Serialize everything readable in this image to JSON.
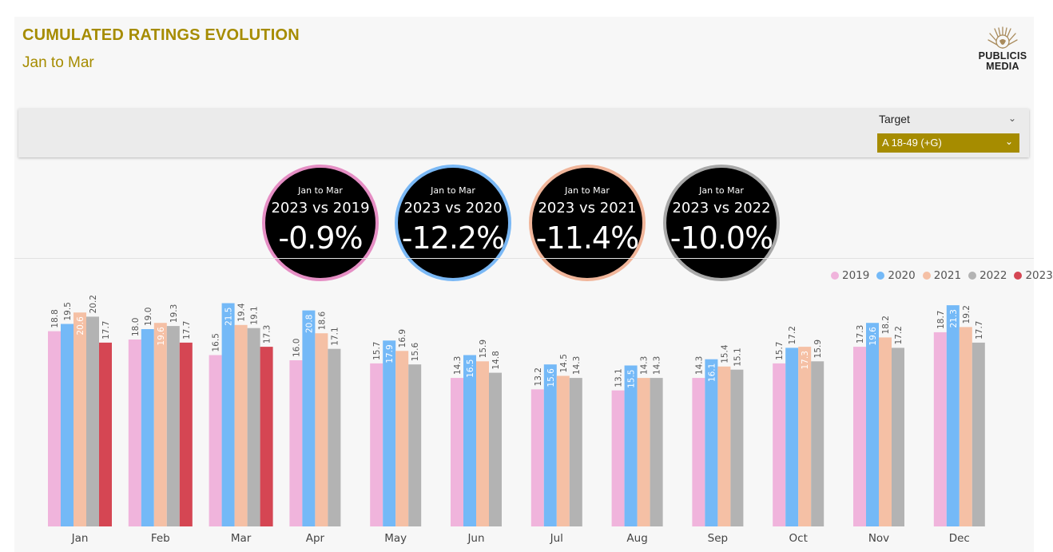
{
  "header": {
    "title": "CUMULATED RATINGS EVOLUTION",
    "subtitle": "Jan to Mar"
  },
  "logo": {
    "line1": "PUBLICIS",
    "line2": "MEDIA"
  },
  "slicer": {
    "label": "Target",
    "selected": "A 18-49 (+G)"
  },
  "kpis": [
    {
      "period": "Jan to Mar",
      "compare": "2023 vs 2019",
      "value": "-0.9%",
      "border": "#e58ec4"
    },
    {
      "period": "Jan to Mar",
      "compare": "2023 vs 2020",
      "value": "-12.2%",
      "border": "#7ab8f5"
    },
    {
      "period": "Jan to Mar",
      "compare": "2023 vs 2021",
      "value": "-11.4%",
      "border": "#f0b59a"
    },
    {
      "period": "Jan to Mar",
      "compare": "2023 vs 2022",
      "value": "-10.0%",
      "border": "#a8a8a8"
    }
  ],
  "chart_data": {
    "type": "bar",
    "categories": [
      "Jan",
      "Feb",
      "Mar",
      "Apr",
      "May",
      "Jun",
      "Jul",
      "Aug",
      "Sep",
      "Oct",
      "Nov",
      "Dec"
    ],
    "legend_position": "top-right",
    "grid": false,
    "ylim": [
      0,
      25
    ],
    "series": [
      {
        "name": "2019",
        "color": "#f0b4dc",
        "values": [
          18.8,
          18.0,
          16.5,
          16.0,
          15.7,
          14.3,
          13.2,
          13.1,
          14.3,
          15.7,
          17.3,
          18.7
        ]
      },
      {
        "name": "2020",
        "color": "#74b9f7",
        "values": [
          19.5,
          19.0,
          21.5,
          20.8,
          17.9,
          16.5,
          15.6,
          15.5,
          16.1,
          17.2,
          19.6,
          21.3
        ]
      },
      {
        "name": "2021",
        "color": "#f5c0a5",
        "values": [
          20.6,
          19.6,
          19.4,
          18.6,
          16.9,
          15.9,
          14.5,
          14.3,
          15.4,
          17.3,
          18.2,
          19.2
        ]
      },
      {
        "name": "2022",
        "color": "#b3b3b3",
        "values": [
          20.2,
          19.3,
          19.1,
          17.1,
          15.6,
          14.8,
          14.3,
          14.3,
          15.1,
          15.9,
          17.2,
          17.7
        ]
      },
      {
        "name": "2023",
        "color": "#d54653",
        "values": [
          17.7,
          17.7,
          17.3,
          null,
          null,
          null,
          null,
          null,
          null,
          null,
          null,
          null
        ]
      }
    ]
  }
}
